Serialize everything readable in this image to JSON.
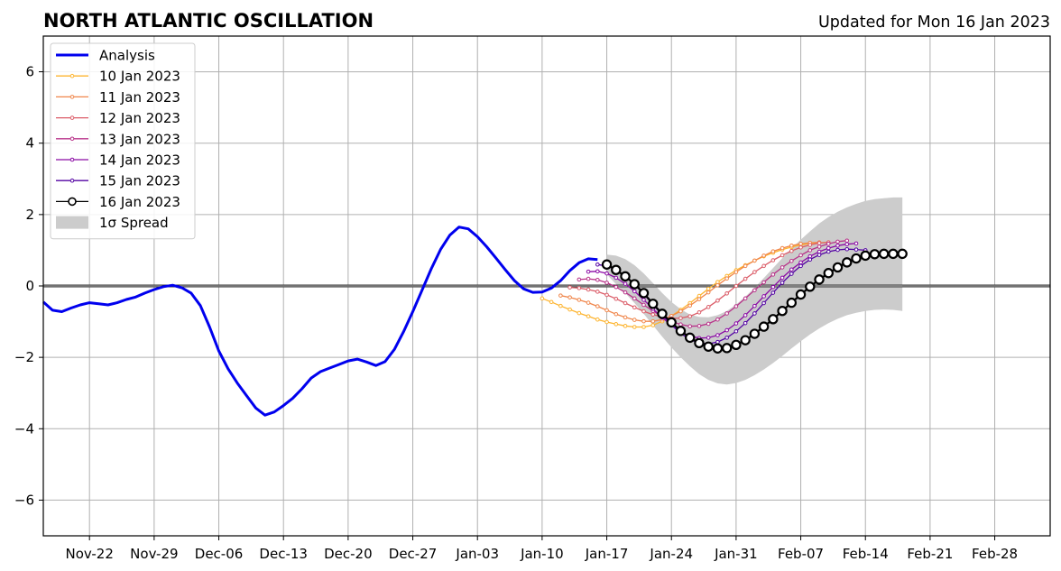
{
  "title": "NORTH ATLANTIC OSCILLATION",
  "subtitle": "Updated for Mon 16 Jan 2023",
  "chart_data": {
    "type": "line",
    "title": "NORTH ATLANTIC OSCILLATION",
    "subtitle": "Updated for Mon 16 Jan 2023",
    "xlabel": "",
    "ylabel": "",
    "ylim": [
      -7,
      7
    ],
    "xlim": [
      "2022-11-17",
      "2023-03-06"
    ],
    "x_ticks": [
      "2022-11-22",
      "2022-11-29",
      "2022-12-06",
      "2022-12-13",
      "2022-12-20",
      "2022-12-27",
      "2023-01-03",
      "2023-01-10",
      "2023-01-17",
      "2023-01-24",
      "2023-01-31",
      "2023-02-07",
      "2023-02-14",
      "2023-02-21",
      "2023-02-28"
    ],
    "x_tick_labels": [
      "Nov-22",
      "Nov-29",
      "Dec-06",
      "Dec-13",
      "Dec-20",
      "Dec-27",
      "Jan-03",
      "Jan-10",
      "Jan-17",
      "Jan-24",
      "Jan-31",
      "Feb-07",
      "Feb-14",
      "Feb-21",
      "Feb-28"
    ],
    "y_ticks": [
      -6,
      -4,
      -2,
      0,
      2,
      4,
      6
    ],
    "y_tick_labels": [
      "−6",
      "−4",
      "−2",
      "0",
      "2",
      "4",
      "6"
    ],
    "grid": true,
    "zero_line": true,
    "legend": "top-left",
    "analysis": {
      "name": "Analysis",
      "color": "#0000ee",
      "start": "2022-11-17",
      "values": [
        -0.45,
        -0.68,
        -0.72,
        -0.62,
        -0.53,
        -0.47,
        -0.5,
        -0.53,
        -0.47,
        -0.38,
        -0.31,
        -0.2,
        -0.1,
        -0.02,
        0.02,
        -0.05,
        -0.2,
        -0.55,
        -1.15,
        -1.82,
        -2.32,
        -2.72,
        -3.07,
        -3.42,
        -3.62,
        -3.53,
        -3.35,
        -3.15,
        -2.88,
        -2.58,
        -2.4,
        -2.3,
        -2.2,
        -2.1,
        -2.05,
        -2.13,
        -2.23,
        -2.12,
        -1.78,
        -1.28,
        -0.72,
        -0.12,
        0.48,
        1.02,
        1.42,
        1.65,
        1.6,
        1.38,
        1.1,
        0.78,
        0.46,
        0.15,
        -0.08,
        -0.18,
        -0.17,
        -0.06,
        0.15,
        0.43,
        0.65,
        0.76,
        0.74
      ]
    },
    "forecasts": [
      {
        "name": "10 Jan 2023",
        "color": "#fdb42f",
        "start": "2023-01-10",
        "values": [
          -0.35,
          -0.45,
          -0.56,
          -0.66,
          -0.76,
          -0.85,
          -0.94,
          -1.01,
          -1.07,
          -1.12,
          -1.15,
          -1.15,
          -1.1,
          -0.99,
          -0.84,
          -0.67,
          -0.48,
          -0.28,
          -0.08,
          0.11,
          0.28,
          0.44,
          0.58,
          0.71,
          0.83,
          0.93,
          1.02,
          1.09,
          1.15,
          1.19,
          1.21,
          1.22
        ]
      },
      {
        "name": "11 Jan 2023",
        "color": "#f0864b",
        "start": "2023-01-12",
        "values": [
          -0.27,
          -0.32,
          -0.39,
          -0.47,
          -0.57,
          -0.68,
          -0.79,
          -0.88,
          -0.95,
          -0.99,
          -0.99,
          -0.94,
          -0.84,
          -0.71,
          -0.55,
          -0.37,
          -0.18,
          0.02,
          0.21,
          0.39,
          0.56,
          0.71,
          0.85,
          0.97,
          1.06,
          1.13,
          1.18,
          1.21,
          1.22
        ]
      },
      {
        "name": "12 Jan 2023",
        "color": "#db5c68",
        "start": "2023-01-13",
        "values": [
          -0.04,
          -0.06,
          -0.1,
          -0.16,
          -0.25,
          -0.36,
          -0.48,
          -0.6,
          -0.71,
          -0.8,
          -0.87,
          -0.91,
          -0.9,
          -0.85,
          -0.74,
          -0.59,
          -0.41,
          -0.21,
          0.0,
          0.2,
          0.39,
          0.56,
          0.72,
          0.86,
          0.98,
          1.08,
          1.15,
          1.2,
          1.22
        ]
      },
      {
        "name": "13 Jan 2023",
        "color": "#b83289",
        "start": "2023-01-14",
        "values": [
          0.18,
          0.2,
          0.17,
          0.09,
          -0.03,
          -0.18,
          -0.35,
          -0.53,
          -0.7,
          -0.86,
          -0.99,
          -1.08,
          -1.13,
          -1.12,
          -1.06,
          -0.94,
          -0.77,
          -0.57,
          -0.35,
          -0.12,
          0.1,
          0.32,
          0.52,
          0.7,
          0.86,
          1.0,
          1.1,
          1.18,
          1.24,
          1.27
        ]
      },
      {
        "name": "14 Jan 2023",
        "color": "#8b0aa5",
        "start": "2023-01-15",
        "values": [
          0.4,
          0.41,
          0.35,
          0.23,
          0.06,
          -0.15,
          -0.39,
          -0.64,
          -0.89,
          -1.1,
          -1.28,
          -1.4,
          -1.46,
          -1.45,
          -1.38,
          -1.24,
          -1.05,
          -0.82,
          -0.56,
          -0.29,
          -0.03,
          0.23,
          0.46,
          0.66,
          0.83,
          0.96,
          1.06,
          1.13,
          1.17,
          1.19
        ]
      },
      {
        "name": "15 Jan 2023",
        "color": "#5302a3",
        "start": "2023-01-16",
        "values": [
          0.6,
          0.56,
          0.45,
          0.27,
          0.04,
          -0.23,
          -0.52,
          -0.82,
          -1.09,
          -1.33,
          -1.5,
          -1.6,
          -1.62,
          -1.57,
          -1.45,
          -1.27,
          -1.04,
          -0.77,
          -0.48,
          -0.19,
          0.09,
          0.34,
          0.56,
          0.74,
          0.87,
          0.96,
          1.01,
          1.03,
          1.02,
          1.0
        ]
      },
      {
        "name": "16 Jan 2023",
        "color": "#000000",
        "start": "2023-01-17",
        "values": [
          0.6,
          0.45,
          0.27,
          0.05,
          -0.2,
          -0.5,
          -0.78,
          -1.02,
          -1.26,
          -1.45,
          -1.6,
          -1.7,
          -1.75,
          -1.74,
          -1.65,
          -1.52,
          -1.34,
          -1.14,
          -0.93,
          -0.7,
          -0.47,
          -0.24,
          -0.02,
          0.18,
          0.36,
          0.52,
          0.66,
          0.77,
          0.85,
          0.89,
          0.9,
          0.9,
          0.9
        ]
      }
    ],
    "spread": {
      "name": "1σ Spread",
      "color": "#cccccc",
      "start": "2023-01-17",
      "upper": [
        0.88,
        0.85,
        0.75,
        0.58,
        0.35,
        0.08,
        -0.2,
        -0.45,
        -0.65,
        -0.8,
        -0.87,
        -0.88,
        -0.82,
        -0.7,
        -0.52,
        -0.3,
        -0.05,
        0.22,
        0.5,
        0.78,
        1.05,
        1.3,
        1.53,
        1.75,
        1.93,
        2.08,
        2.2,
        2.3,
        2.38,
        2.43,
        2.46,
        2.48,
        2.48
      ],
      "lower": [
        0.32,
        0.05,
        -0.2,
        -0.48,
        -0.78,
        -1.1,
        -1.42,
        -1.72,
        -2.0,
        -2.25,
        -2.47,
        -2.63,
        -2.73,
        -2.76,
        -2.72,
        -2.63,
        -2.5,
        -2.34,
        -2.16,
        -1.96,
        -1.75,
        -1.55,
        -1.36,
        -1.19,
        -1.04,
        -0.92,
        -0.82,
        -0.75,
        -0.7,
        -0.67,
        -0.66,
        -0.67,
        -0.7
      ]
    }
  }
}
